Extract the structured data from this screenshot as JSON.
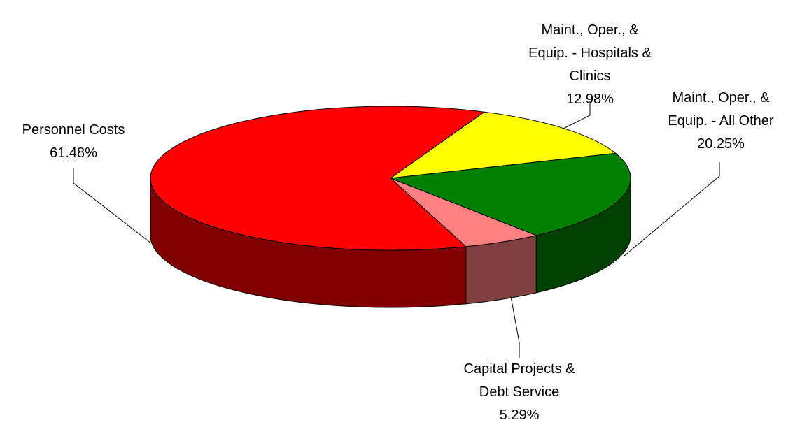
{
  "chart_data": {
    "type": "pie3d",
    "categories": [
      "Maint., Oper., &\nEquip. - Hospitals &\nClinics",
      "Maint., Oper., &\nEquip. - All Other",
      "Capital Projects &\nDebt Service",
      "Personnel Costs"
    ],
    "values": [
      12.98,
      20.25,
      5.29,
      61.48
    ],
    "value_labels": [
      "12.98%",
      "20.25%",
      "5.29%",
      "61.48%"
    ],
    "colors": [
      "#ffff00",
      "#008000",
      "#ff8080",
      "#ff0000"
    ],
    "side_colors": [
      "#808000",
      "#004000",
      "#804040",
      "#800000"
    ]
  }
}
